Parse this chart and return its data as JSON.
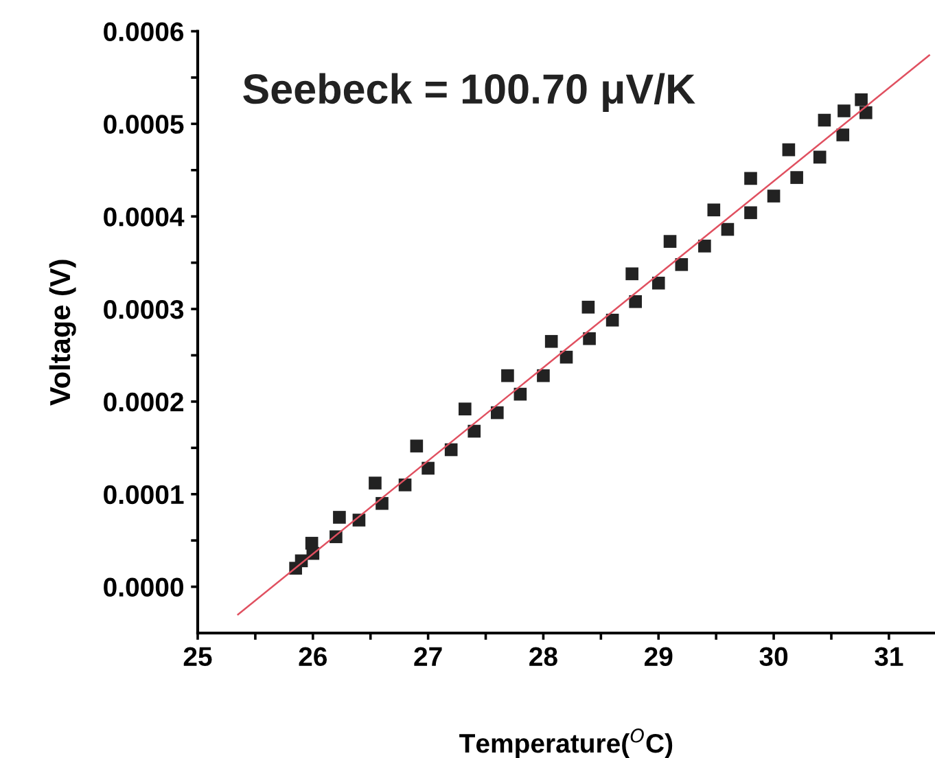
{
  "chart_data": {
    "type": "scatter",
    "xlabel": "Temperature($^{O}$C)",
    "ylabel": "Voltage (V)",
    "annotations": [
      "Seebeck = 100.70 μV/K"
    ],
    "xlim": [
      25,
      31.4
    ],
    "ylim": [
      -5e-05,
      0.0006
    ],
    "xticks": [
      25,
      {
        "value": 25.5,
        "label": null
      },
      26,
      {
        "value": 26.5,
        "label": null
      },
      27,
      {
        "value": 27.5,
        "label": null
      },
      28,
      {
        "value": 28.5,
        "label": null
      },
      29,
      {
        "value": 29.5,
        "label": null
      },
      30,
      {
        "value": 30.5,
        "label": null
      },
      31
    ],
    "yticks": [
      {
        "value": 0,
        "label": "0.0000"
      },
      {
        "value": 5e-05,
        "label": null
      },
      {
        "value": 0.0001,
        "label": "0.0001"
      },
      {
        "value": 0.00015,
        "label": null
      },
      {
        "value": 0.0002,
        "label": "0.0002"
      },
      {
        "value": 0.00025,
        "label": null
      },
      {
        "value": 0.0003,
        "label": "0.0003"
      },
      {
        "value": 0.00035,
        "label": null
      },
      {
        "value": 0.0004,
        "label": "0.0004"
      },
      {
        "value": 0.00045,
        "label": null
      },
      {
        "value": 0.0005,
        "label": "0.0005"
      },
      {
        "value": 0.00055,
        "label": null
      },
      {
        "value": 0.0006,
        "label": "0.0006"
      }
    ],
    "grid": false,
    "legend": false,
    "marker": "square",
    "series": [
      {
        "color": "#222222",
        "x": [
          25.85,
          25.9,
          26.0,
          26.2,
          26.4,
          26.6,
          26.8,
          27.0,
          27.2,
          27.4,
          27.6,
          27.8,
          28.0,
          28.2,
          28.4,
          28.6,
          28.8,
          29.0,
          29.2,
          29.4,
          29.6,
          29.8,
          30.0,
          30.2,
          30.4,
          30.6,
          30.8
        ],
        "values": [
          2e-05,
          2.8e-05,
          3.6e-05,
          5.4e-05,
          7.2e-05,
          9e-05,
          0.00011,
          0.000128,
          0.000148,
          0.000168,
          0.000188,
          0.000208,
          0.000228,
          0.000248,
          0.000268,
          0.000288,
          0.000308,
          0.000328,
          0.000348,
          0.000368,
          0.000386,
          0.000404,
          0.000422,
          0.000442,
          0.000464,
          0.000488,
          0.000512
        ]
      },
      {
        "color": "#222222",
        "x": [
          25.99,
          26.23,
          26.54,
          26.9,
          27.32,
          27.69,
          28.07,
          28.39,
          28.77,
          29.1,
          29.48,
          29.8,
          30.13,
          30.44,
          30.61,
          30.76
        ],
        "values": [
          4.7e-05,
          7.5e-05,
          0.000112,
          0.000152,
          0.000192,
          0.000228,
          0.000265,
          0.000302,
          0.000338,
          0.000373,
          0.000407,
          0.000441,
          0.000472,
          0.000504,
          0.000514,
          0.000526
        ]
      },
      {
        "type": "line",
        "color": "#e05060",
        "marker": "none",
        "line_style": "solid",
        "x": [
          25.35,
          31.35
        ],
        "values": [
          -3e-05,
          0.000574
        ]
      }
    ]
  }
}
